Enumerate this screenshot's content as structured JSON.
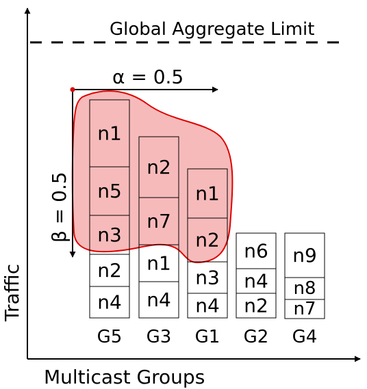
{
  "colors": {
    "highlight_fill": "#f4a3a3",
    "highlight_stroke": "#e00000",
    "axis": "#000000"
  },
  "axes": {
    "y_label": "Traffic",
    "x_label": "Multicast Groups"
  },
  "limit": {
    "label": "Global Aggregate Limit"
  },
  "alpha": {
    "label": "α = 0.5"
  },
  "beta": {
    "label": "β = 0.5"
  },
  "groups": [
    {
      "name": "G5",
      "cells": [
        "n1",
        "n5",
        "n3",
        "n2",
        "n4"
      ]
    },
    {
      "name": "G3",
      "cells": [
        "n2",
        "n7",
        "n1",
        "n4"
      ]
    },
    {
      "name": "G1",
      "cells": [
        "n1",
        "n2",
        "n3",
        "n4"
      ]
    },
    {
      "name": "G2",
      "cells": [
        "n6",
        "n4",
        "n2"
      ]
    },
    {
      "name": "G4",
      "cells": [
        "n9",
        "n8",
        "n7"
      ]
    }
  ]
}
